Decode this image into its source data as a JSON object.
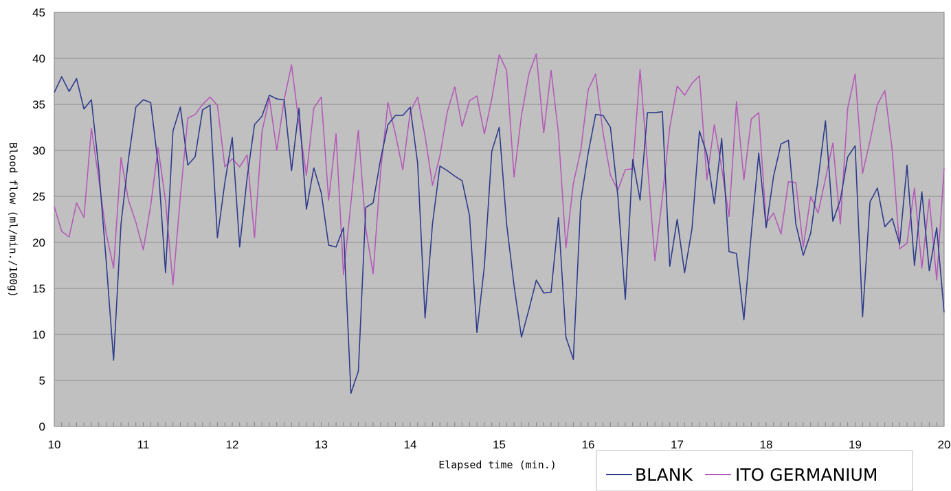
{
  "chart_data": {
    "type": "line",
    "xlabel": "Elapsed time (min.)",
    "ylabel": "Blood flow (ml/min./100g)",
    "xlim": [
      10,
      20
    ],
    "ylim": [
      0,
      45
    ],
    "x_ticks": [
      "10",
      "11",
      "12",
      "13",
      "14",
      "15",
      "16",
      "17",
      "18",
      "19",
      "20"
    ],
    "y_ticks": [
      "0",
      "5",
      "10",
      "15",
      "20",
      "25",
      "30",
      "35",
      "40",
      "45"
    ],
    "grid": "horizontal",
    "legend_position": "bottom-right",
    "x_step": 0.0833,
    "series": [
      {
        "name": "BLANK",
        "color": "#2e3a8c",
        "values": [
          36.3,
          38.0,
          36.4,
          37.8,
          34.5,
          35.5,
          28,
          18,
          7.2,
          22,
          29,
          34.7,
          35.5,
          35.2,
          28.5,
          16.7,
          32.1,
          34.7,
          28.4,
          29.3,
          34.4,
          34.9,
          20.5,
          26.5,
          31.4,
          19.5,
          27,
          32.8,
          33.7,
          36,
          35.6,
          35.5,
          27.8,
          34.6,
          23.6,
          28.1,
          25.4,
          19.7,
          19.5,
          21.6,
          3.6,
          6,
          23.8,
          24.3,
          29,
          32.8,
          33.8,
          33.8,
          34.7,
          28.6,
          11.8,
          22,
          28.3,
          27.8,
          27.2,
          26.7,
          22.9,
          10.2,
          17.4,
          29.9,
          32.5,
          22,
          15.3,
          9.7,
          12.7,
          15.9,
          14.5,
          14.6,
          22.7,
          9.7,
          7.3,
          24.5,
          29.7,
          33.9,
          33.8,
          32.5,
          25,
          13.8,
          29,
          24.6,
          34.1,
          34.1,
          34.2,
          17.4,
          22.5,
          16.7,
          21.5,
          32.1,
          29.6,
          24.2,
          31.3,
          19,
          18.8,
          11.6,
          21,
          29.7,
          21.6,
          27.2,
          30.7,
          31.1,
          22,
          18.6,
          21,
          26.8,
          33.2,
          22.3,
          24.6,
          29.3,
          30.5,
          11.9,
          24.4,
          25.9,
          21.7,
          22.6,
          19.8,
          28.4,
          17.5,
          25.5,
          16.9,
          21.6,
          12.4
        ]
      },
      {
        "name": "ITO GERMANIUM",
        "color": "#b45ab8",
        "values": [
          23.9,
          21.2,
          20.6,
          24.3,
          22.7,
          32.4,
          26.8,
          21,
          17.2,
          29.2,
          24.6,
          22.2,
          19.2,
          24,
          30.3,
          24.5,
          15.4,
          25,
          33.5,
          33.9,
          35,
          35.8,
          34.9,
          28.2,
          29.1,
          28.2,
          29.5,
          20.5,
          32,
          35.7,
          30,
          35.5,
          39.3,
          32.9,
          27.3,
          34.6,
          35.8,
          24.6,
          31.8,
          16.5,
          24.3,
          32.2,
          21.5,
          16.6,
          27.6,
          35.2,
          31.8,
          27.9,
          34.2,
          35.8,
          31.6,
          26.2,
          29.4,
          34.2,
          36.9,
          32.6,
          35.4,
          35.9,
          31.8,
          35.6,
          40.4,
          38.7,
          27.1,
          33.8,
          38.3,
          40.5,
          31.9,
          38.7,
          31.8,
          19.4,
          26.4,
          30,
          36.6,
          38.3,
          31.9,
          27.3,
          25.7,
          27.9,
          28,
          38.8,
          28.5,
          18,
          24.9,
          32.5,
          37,
          36,
          37.3,
          38.1,
          26.8,
          32.8,
          28.1,
          22.8,
          35.3,
          26.8,
          33.4,
          34.1,
          22.1,
          23.2,
          20.9,
          26.6,
          26.5,
          19.5,
          25,
          23.2,
          26.9,
          30.8,
          22,
          34.6,
          38.3,
          27.5,
          31,
          35,
          36.5,
          30,
          19.3,
          19.9,
          25.9,
          17.2,
          24.7,
          15.9,
          28.1
        ]
      }
    ]
  }
}
